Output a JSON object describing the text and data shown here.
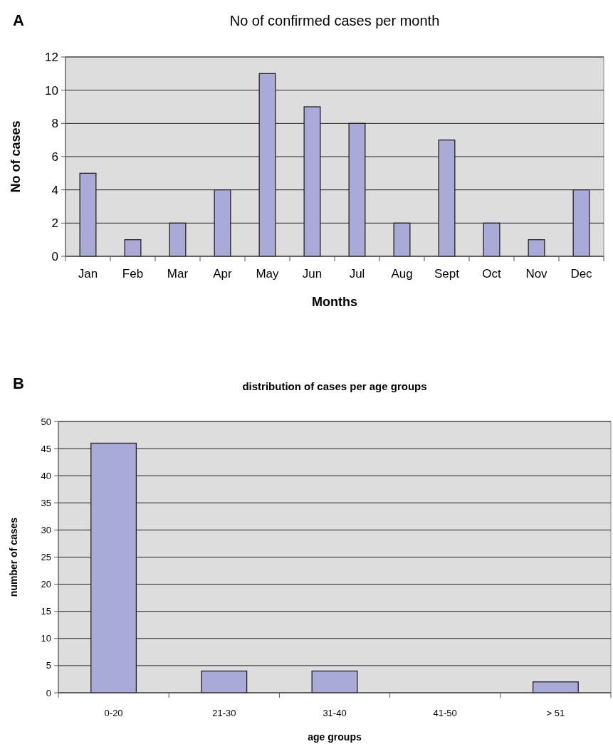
{
  "chart_data": [
    {
      "type": "bar",
      "title": "No of confirmed cases per month",
      "xlabel": "Months",
      "ylabel": "No of cases",
      "annotations": [
        "A"
      ],
      "categories": [
        "Jan",
        "Feb",
        "Mar",
        "Apr",
        "May",
        "Jun",
        "Jul",
        "Aug",
        "Sept",
        "Oct",
        "Nov",
        "Dec"
      ],
      "values": [
        5,
        1,
        2,
        4,
        11,
        9,
        8,
        2,
        7,
        2,
        1,
        4
      ],
      "color": "#aaaad8",
      "ylim": [
        0,
        12
      ],
      "yticks": [
        0,
        2,
        4,
        6,
        8,
        10,
        12
      ],
      "grid": "y"
    },
    {
      "type": "bar",
      "title": "distribution of cases per age groups",
      "xlabel": "age groups",
      "ylabel": "number of cases",
      "annotations": [
        "B"
      ],
      "categories": [
        "0-20",
        "21-30",
        "31-40",
        "41-50",
        "> 51"
      ],
      "values": [
        46,
        4,
        4,
        0,
        2
      ],
      "color": "#aaaad8",
      "ylim": [
        0,
        50
      ],
      "yticks": [
        0,
        5,
        10,
        15,
        20,
        25,
        30,
        35,
        40,
        45,
        50
      ],
      "grid": "y"
    }
  ]
}
